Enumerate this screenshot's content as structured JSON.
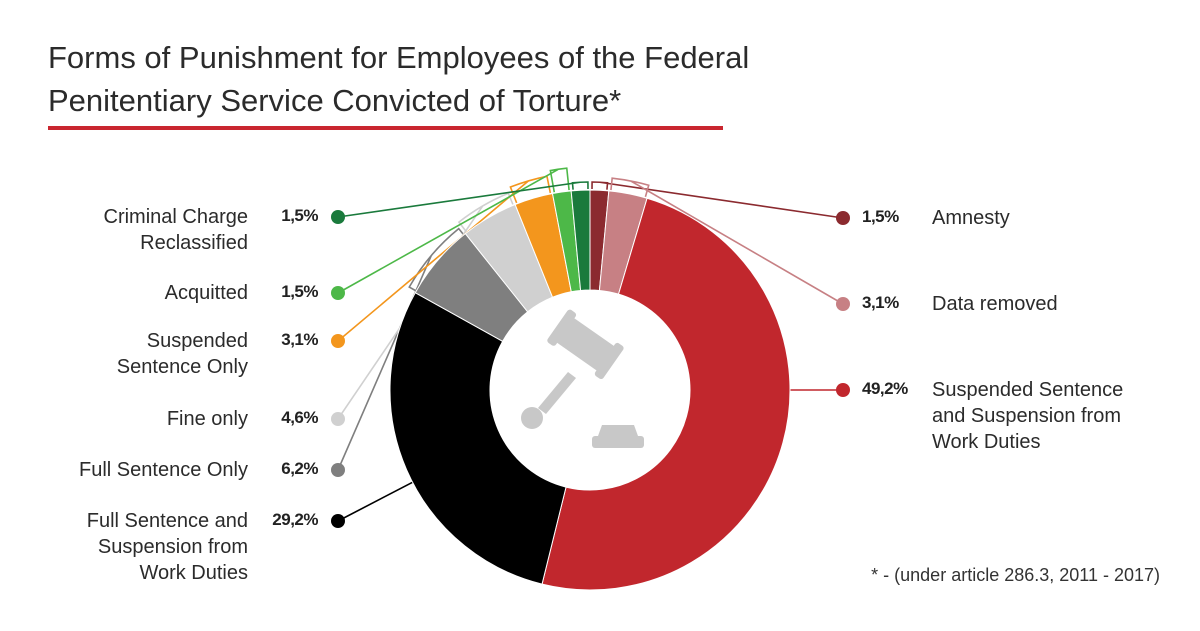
{
  "title": {
    "line1": "Forms of Punishment for Employees of the Federal",
    "line2": "Penitentiary Service Convicted of Torture*"
  },
  "footnote": "* - (under article 286.3,  2011 - 2017)",
  "icon": "gavel-icon",
  "chart_data": {
    "type": "pie",
    "donut": true,
    "title": "Forms of Punishment for Employees of the Federal Penitentiary Service Convicted of Torture*",
    "slices": [
      {
        "label": "Amnesty",
        "value_label": "1,5%",
        "value": 1.5,
        "color": "#8b2a2f",
        "side": "right"
      },
      {
        "label": "Data removed",
        "value_label": "3,1%",
        "value": 3.1,
        "color": "#c78084",
        "side": "right"
      },
      {
        "label": "Suspended Sentence and Suspension from Work Duties",
        "value_label": "49,2%",
        "value": 49.2,
        "color": "#c1272d",
        "side": "right"
      },
      {
        "label": "Full Sentence and Suspension from Work Duties",
        "value_label": "29,2%",
        "value": 29.2,
        "color": "#000000",
        "side": "left"
      },
      {
        "label": "Full Sentence Only",
        "value_label": "6,2%",
        "value": 6.2,
        "color": "#7f7f7f",
        "side": "left"
      },
      {
        "label": "Fine only",
        "value_label": "4,6%",
        "value": 4.6,
        "color": "#d0d0d0",
        "side": "left"
      },
      {
        "label": "Suspended Sentence Only",
        "value_label": "3,1%",
        "value": 3.1,
        "color": "#f3961d",
        "side": "left"
      },
      {
        "label": "Acquitted",
        "value_label": "1,5%",
        "value": 1.5,
        "color": "#4db848",
        "side": "left"
      },
      {
        "label": "Criminal Charge Reclassified",
        "value_label": "1,5%",
        "value": 1.5,
        "color": "#1a7a3c",
        "side": "left"
      }
    ]
  }
}
